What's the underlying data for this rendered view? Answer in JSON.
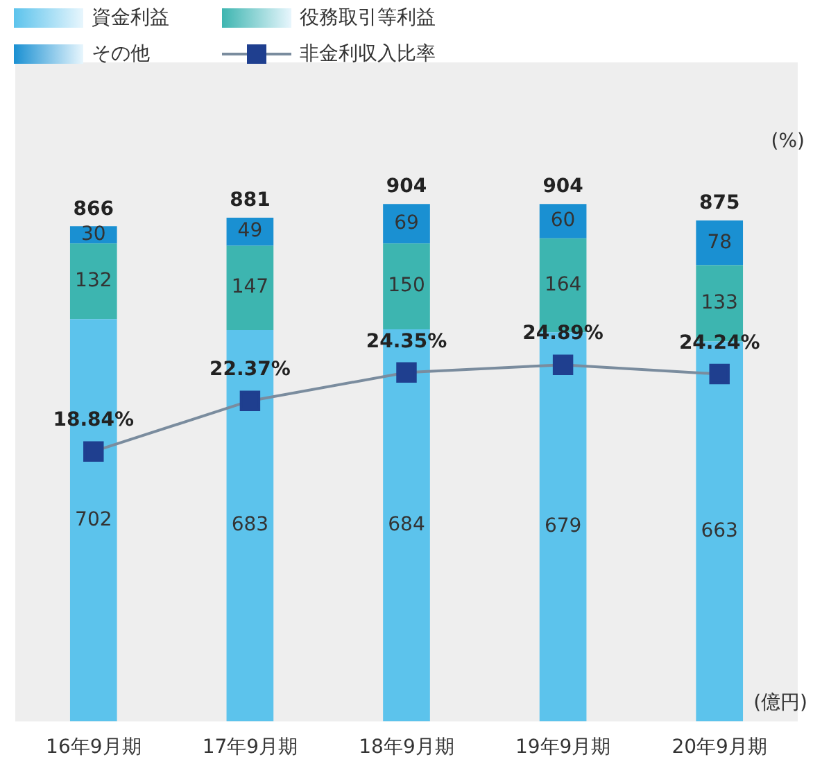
{
  "chart_data": {
    "type": "bar",
    "stacked": true,
    "ylabel": "(億円)",
    "y2label": "(%)",
    "legend": "top left",
    "ylim": [
      0,
      1150
    ],
    "y2lim": [
      0,
      46
    ],
    "categories": [
      "16年9月期",
      "17年9月期",
      "18年9月期",
      "19年9月期",
      "20年9月期"
    ],
    "series": [
      {
        "name": "資金利益",
        "color": "#5cc3ec",
        "values": [
          702,
          683,
          684,
          679,
          663
        ],
        "value_labels": [
          "702",
          "683",
          "684",
          "679",
          "663"
        ]
      },
      {
        "name": "役務取引等利益",
        "color": "#3db5b0",
        "values": [
          132,
          147,
          150,
          164,
          133
        ],
        "value_labels": [
          "132",
          "147",
          "150",
          "164",
          "133"
        ]
      },
      {
        "name": "その他",
        "color": "#1a90d2",
        "values": [
          30,
          49,
          69,
          60,
          78
        ],
        "value_labels": [
          "30",
          "49",
          "69",
          "60",
          "78"
        ]
      },
      {
        "name": "非金利収入比率",
        "type": "line",
        "axis": "y2",
        "color": "#7a8c9e",
        "marker": "square",
        "values": [
          18.84,
          22.37,
          24.35,
          24.89,
          24.24
        ],
        "value_labels": [
          "18.84%",
          "22.37%",
          "24.35%",
          "24.89%",
          "24.24%"
        ]
      }
    ],
    "totals": [
      "866",
      "881",
      "904",
      "904",
      "875"
    ]
  }
}
